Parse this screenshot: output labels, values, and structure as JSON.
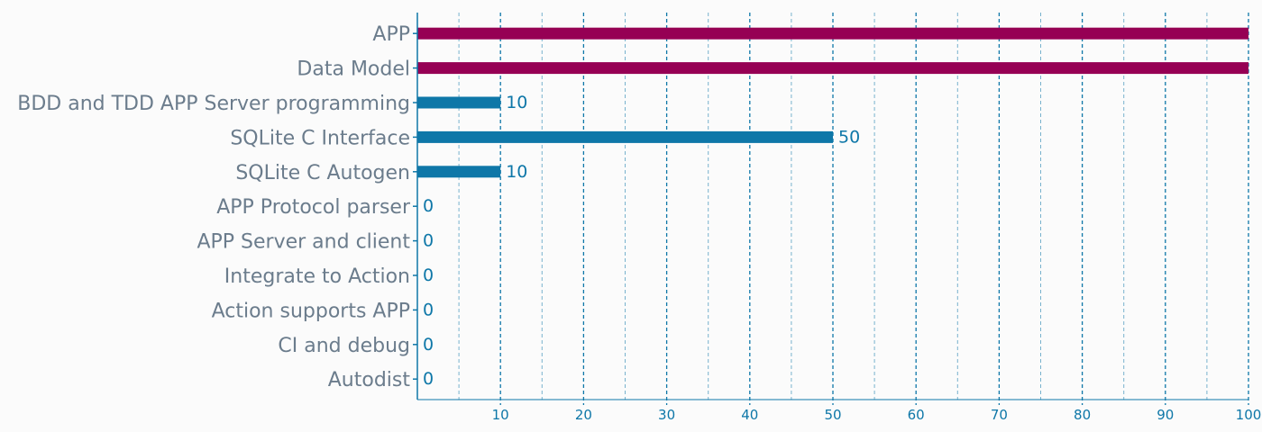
{
  "chart_data": {
    "type": "bar",
    "orientation": "horizontal",
    "title": "",
    "xlabel": "",
    "ylabel": "",
    "xlim": [
      0,
      100
    ],
    "major_ticks": [
      10,
      20,
      30,
      40,
      50,
      60,
      70,
      80,
      90,
      100
    ],
    "minor_grid_step": 5,
    "grid": true,
    "legend": "none",
    "categories": [
      "APP",
      "Data Model",
      "BDD and TDD APP Server programming",
      "SQLite C Interface",
      "SQLite C Autogen",
      "APP Protocol parser",
      "APP Server and client",
      "Integrate to Action",
      "Action supports APP",
      "CI and debug",
      "Autodist"
    ],
    "values": [
      100,
      100,
      10,
      50,
      10,
      0,
      0,
      0,
      0,
      0,
      0
    ],
    "value_labels": [
      "",
      "",
      "10",
      "50",
      "10",
      "0",
      "0",
      "0",
      "0",
      "0",
      "0"
    ],
    "bar_colors": [
      "#960054",
      "#960054",
      "#0e77a8",
      "#0e77a8",
      "#0e77a8",
      "#0e77a8",
      "#0e77a8",
      "#0e77a8",
      "#0e77a8",
      "#0e77a8",
      "#0e77a8"
    ],
    "colors": {
      "axis": "#0e77a8",
      "grid": "#0e77a8",
      "category_text": "#6b7c8c",
      "background": "#fbfbfb"
    }
  }
}
